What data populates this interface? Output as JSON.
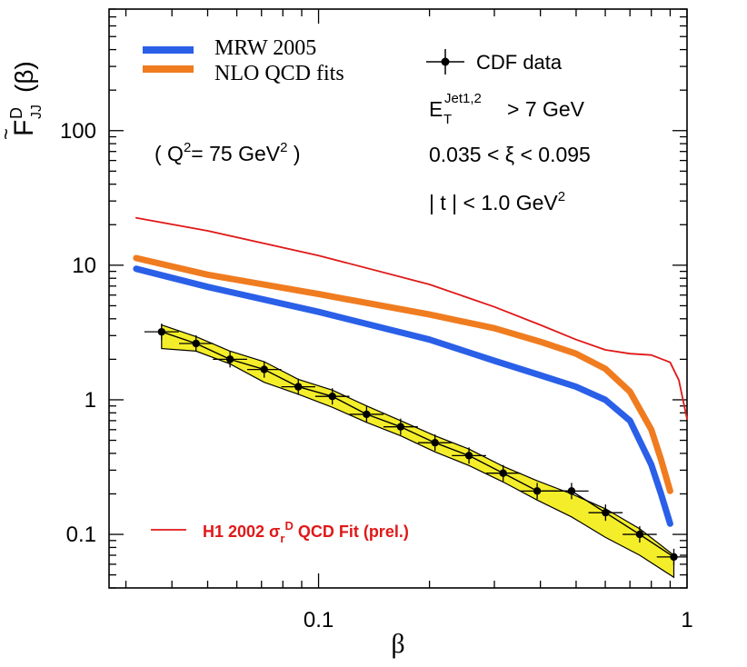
{
  "chart_data": {
    "type": "line",
    "title": "",
    "xlabel": "β",
    "ylabel_main": "F",
    "ylabel_sup": "D",
    "ylabel_sub": "JJ",
    "ylabel_arg": "(β)",
    "xscale": "log",
    "yscale": "log",
    "xlim": [
      0.027,
      1.0
    ],
    "ylim": [
      0.04,
      800
    ],
    "x_ticks": [
      {
        "value": 0.1,
        "label": "0.1"
      },
      {
        "value": 1,
        "label": "1"
      }
    ],
    "y_ticks": [
      {
        "value": 0.1,
        "label": "0.1"
      },
      {
        "value": 1,
        "label": "1"
      },
      {
        "value": 10,
        "label": "10"
      },
      {
        "value": 100,
        "label": "100"
      }
    ],
    "legend": [
      {
        "label": "MRW 2005",
        "color": "#2a5fe8"
      },
      {
        "label": "NLO QCD fits",
        "color": "#f07c20"
      },
      {
        "label": "CDF data",
        "marker": "point-with-errorbars",
        "color": "#000000"
      }
    ],
    "annotations": {
      "q2_pre": "( Q",
      "q2_sup": "2",
      "q2_mid": "= 75 GeV",
      "q2_sup2": "2",
      "q2_post": " )",
      "et_main": "E",
      "et_sub": "T",
      "et_sup": "Jet1,2",
      "et_rest": "> 7 GeV",
      "xi": "0.035 < ξ < 0.095",
      "t_main": "| t | < 1.0 GeV",
      "t_sup": "2",
      "h1_pre": "H1 2002 σ",
      "h1_sub": "r",
      "h1_sup": "D",
      "h1_post": " QCD Fit (prel.)"
    },
    "series": [
      {
        "name": "MRW 2005",
        "color": "#2a5fe8",
        "x": [
          0.032,
          0.05,
          0.1,
          0.2,
          0.3,
          0.4,
          0.5,
          0.6,
          0.7,
          0.8,
          0.85,
          0.9
        ],
        "y": [
          9.4,
          6.9,
          4.5,
          2.8,
          1.95,
          1.52,
          1.25,
          1.0,
          0.7,
          0.33,
          0.2,
          0.12
        ]
      },
      {
        "name": "NLO QCD fits",
        "color": "#f07c20",
        "x": [
          0.032,
          0.05,
          0.1,
          0.2,
          0.3,
          0.4,
          0.5,
          0.6,
          0.7,
          0.8,
          0.85,
          0.9
        ],
        "y": [
          11.3,
          8.5,
          6.1,
          4.3,
          3.4,
          2.7,
          2.2,
          1.7,
          1.15,
          0.6,
          0.36,
          0.21
        ]
      },
      {
        "name": "H1 2002 σrD QCD Fit (prel.)",
        "color": "#e01818",
        "x": [
          0.032,
          0.05,
          0.1,
          0.2,
          0.3,
          0.4,
          0.5,
          0.6,
          0.7,
          0.8,
          0.9,
          0.95,
          1.0
        ],
        "y": [
          22.5,
          18.0,
          11.8,
          7.2,
          4.9,
          3.6,
          2.8,
          2.35,
          2.2,
          2.15,
          1.9,
          1.4,
          0.72
        ]
      },
      {
        "name": "CDF data",
        "color": "#000000",
        "x": [
          0.0375,
          0.0465,
          0.0575,
          0.0712,
          0.0881,
          0.109,
          0.135,
          0.167,
          0.207,
          0.256,
          0.317,
          0.392,
          0.486,
          0.601,
          0.744,
          0.921
        ],
        "y": [
          3.2,
          2.62,
          2.0,
          1.68,
          1.25,
          1.06,
          0.78,
          0.63,
          0.48,
          0.385,
          0.285,
          0.21,
          0.21,
          0.145,
          0.1,
          0.068
        ]
      }
    ],
    "cdf_band": {
      "x": [
        0.0375,
        0.0465,
        0.0575,
        0.0712,
        0.0881,
        0.109,
        0.135,
        0.167,
        0.207,
        0.256,
        0.317,
        0.392,
        0.486,
        0.601,
        0.744,
        0.921
      ],
      "upper": [
        3.6,
        2.95,
        2.3,
        1.92,
        1.42,
        1.18,
        0.9,
        0.7,
        0.54,
        0.43,
        0.32,
        0.25,
        0.2,
        0.155,
        0.11,
        0.07
      ],
      "lower": [
        2.4,
        2.3,
        1.85,
        1.35,
        1.1,
        0.88,
        0.68,
        0.54,
        0.41,
        0.325,
        0.245,
        0.18,
        0.135,
        0.095,
        0.07,
        0.048
      ]
    },
    "band_color": "#f4ee2a"
  }
}
